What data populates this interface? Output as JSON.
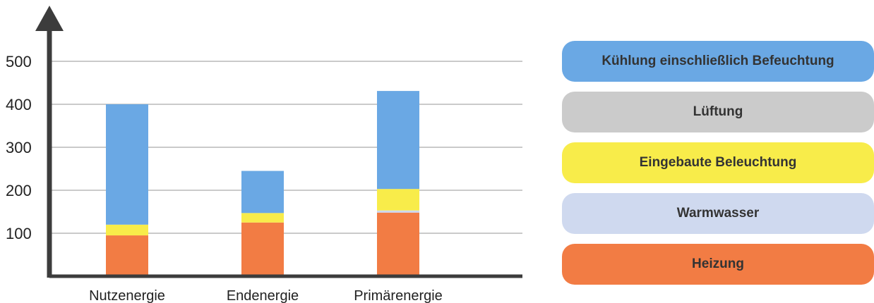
{
  "chart_data": {
    "type": "bar",
    "stacked": true,
    "categories": [
      "Nutzenergie",
      "Endenergie",
      "Primärenergie"
    ],
    "yticks": [
      "100",
      "200",
      "300",
      "400",
      "500"
    ],
    "ylim": [
      0,
      500
    ],
    "grid": true,
    "legend_position": "right",
    "series": [
      {
        "name": "Heizung",
        "color": "#f27c44",
        "values": [
          95,
          125,
          148
        ]
      },
      {
        "name": "Warmwasser",
        "color": "#cdd8ee",
        "values": [
          0,
          0,
          5
        ]
      },
      {
        "name": "Eingebaute Beleuchtung",
        "color": "#f8ec4a",
        "values": [
          25,
          22,
          50
        ]
      },
      {
        "name": "Lüftung",
        "color": "#c9c9c9",
        "values": [
          0,
          0,
          0
        ]
      },
      {
        "name": "Kühlung einschließlich Befeuchtung",
        "color": "#6aa8e4",
        "values": [
          280,
          98,
          228
        ]
      }
    ]
  },
  "legend": {
    "items": [
      {
        "label": "Kühlung einschließlich Befeuchtung",
        "color": "#6aa8e4"
      },
      {
        "label": "Lüftung",
        "color": "#cbcbcb"
      },
      {
        "label": "Eingebaute Beleuchtung",
        "color": "#f8ec4a"
      },
      {
        "label": "Warmwasser",
        "color": "#cfd9ef"
      },
      {
        "label": "Heizung",
        "color": "#f27c44"
      }
    ]
  }
}
